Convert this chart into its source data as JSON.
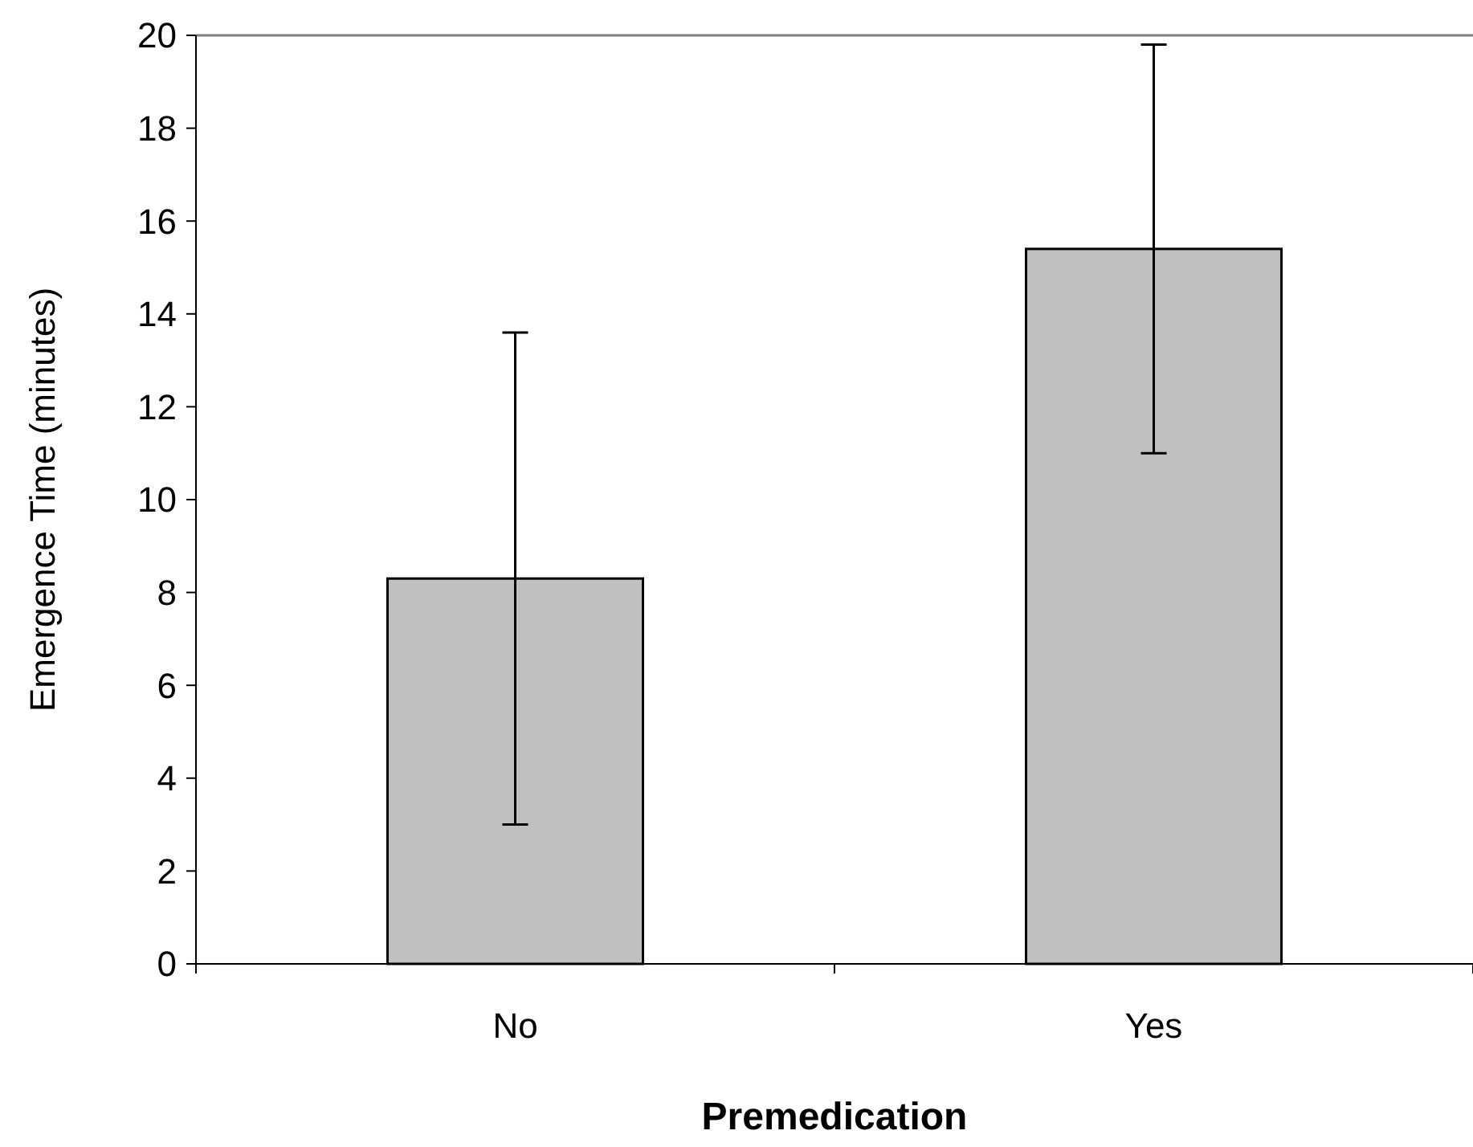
{
  "chart_data": {
    "type": "bar",
    "xlabel": "Premedication",
    "ylabel": "Emergence Time (minutes)",
    "categories": [
      "No",
      "Yes"
    ],
    "values": [
      8.3,
      15.4
    ],
    "errors": [
      5.3,
      4.4
    ],
    "color": "#c0c0c0",
    "ylim": [
      0,
      20
    ],
    "yticks": [
      0,
      2,
      4,
      6,
      8,
      10,
      12,
      14,
      16,
      18,
      20
    ]
  }
}
